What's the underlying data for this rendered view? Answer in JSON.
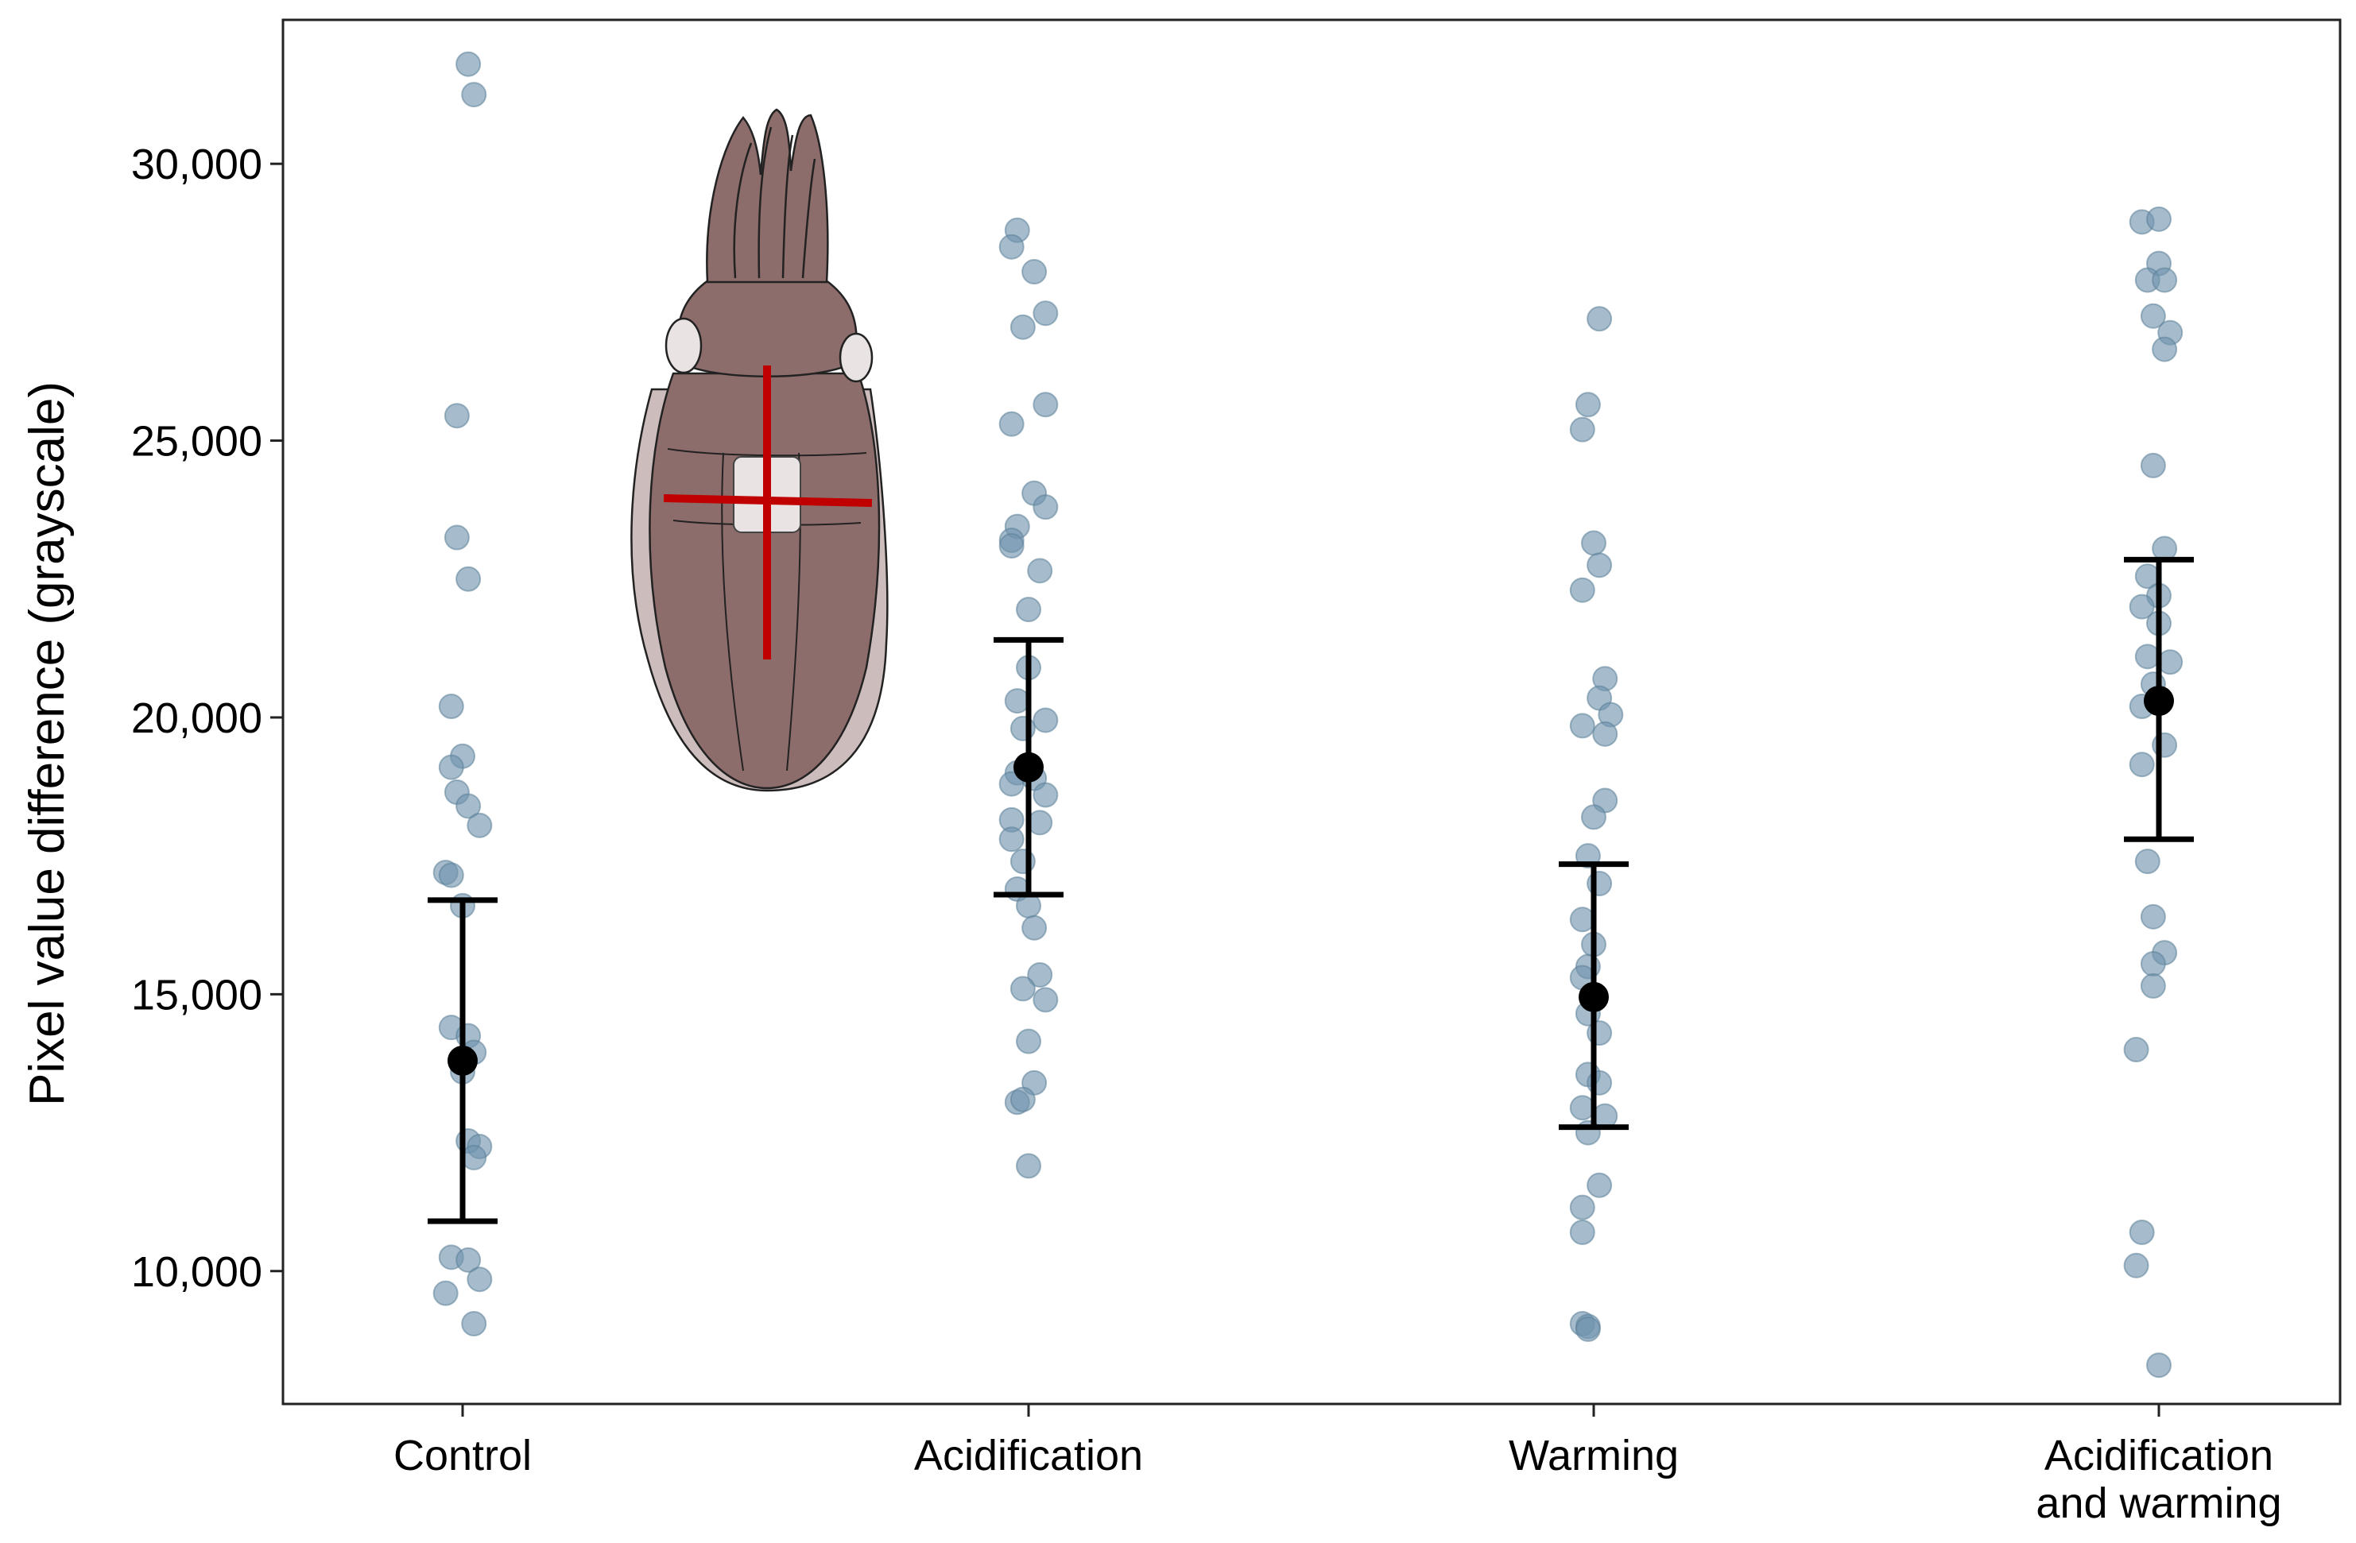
{
  "chart_data": {
    "type": "scatter",
    "subtype": "jittered strip plot with mean ± error bars",
    "title": "",
    "xlabel": "",
    "ylabel": "Pixel value difference (grayscale)",
    "ylim": [
      7600,
      32600
    ],
    "yticks": [
      10000,
      15000,
      20000,
      25000,
      30000
    ],
    "ytick_labels": [
      "10,000",
      "15,000",
      "20,000",
      "25,000",
      "30,000"
    ],
    "categories": [
      {
        "id": "control",
        "lines": [
          "Control"
        ]
      },
      {
        "id": "acidification",
        "lines": [
          "Acidification"
        ]
      },
      {
        "id": "warming",
        "lines": [
          "Warming"
        ]
      },
      {
        "id": "acid-warm",
        "lines": [
          "Acidification",
          "and warming"
        ]
      }
    ],
    "groups": [
      {
        "category": "Control",
        "mean": 13800,
        "lower": 10900,
        "upper": 16700,
        "points": [
          [
            0.01,
            31800
          ],
          [
            0.02,
            31250
          ],
          [
            -0.01,
            25450
          ],
          [
            -0.01,
            23250
          ],
          [
            0.01,
            22500
          ],
          [
            -0.02,
            20200
          ],
          [
            0.0,
            19300
          ],
          [
            -0.02,
            19100
          ],
          [
            -0.01,
            18650
          ],
          [
            0.01,
            18400
          ],
          [
            0.03,
            18050
          ],
          [
            -0.03,
            17200
          ],
          [
            -0.02,
            17150
          ],
          [
            0.0,
            16600
          ],
          [
            -0.02,
            14400
          ],
          [
            0.01,
            14250
          ],
          [
            0.02,
            13950
          ],
          [
            0.0,
            13600
          ],
          [
            0.01,
            12350
          ],
          [
            0.03,
            12250
          ],
          [
            0.02,
            12050
          ],
          [
            -0.02,
            10250
          ],
          [
            0.01,
            10200
          ],
          [
            0.03,
            9850
          ],
          [
            -0.03,
            9600
          ],
          [
            0.02,
            9050
          ]
        ]
      },
      {
        "category": "Acidification",
        "mean": 19100,
        "lower": 16800,
        "upper": 21400,
        "points": [
          [
            -0.02,
            28800
          ],
          [
            -0.03,
            28500
          ],
          [
            0.01,
            28050
          ],
          [
            0.03,
            27300
          ],
          [
            -0.01,
            27050
          ],
          [
            0.03,
            25650
          ],
          [
            -0.03,
            25300
          ],
          [
            0.01,
            24050
          ],
          [
            0.03,
            23800
          ],
          [
            -0.02,
            23450
          ],
          [
            -0.03,
            23200
          ],
          [
            -0.03,
            23100
          ],
          [
            0.02,
            22650
          ],
          [
            0.0,
            21950
          ],
          [
            0.0,
            20900
          ],
          [
            -0.02,
            20300
          ],
          [
            0.03,
            19950
          ],
          [
            -0.01,
            19800
          ],
          [
            -0.02,
            19000
          ],
          [
            -0.03,
            18800
          ],
          [
            0.01,
            18900
          ],
          [
            0.03,
            18600
          ],
          [
            -0.03,
            18150
          ],
          [
            0.02,
            18100
          ],
          [
            -0.03,
            17800
          ],
          [
            -0.01,
            17400
          ],
          [
            -0.02,
            16900
          ],
          [
            0.0,
            16600
          ],
          [
            0.01,
            16200
          ],
          [
            0.02,
            15350
          ],
          [
            -0.01,
            15100
          ],
          [
            0.03,
            14900
          ],
          [
            0.0,
            14150
          ],
          [
            0.01,
            13400
          ],
          [
            -0.02,
            13050
          ],
          [
            -0.01,
            13100
          ],
          [
            0.0,
            11900
          ]
        ]
      },
      {
        "category": "Warming",
        "mean": 14950,
        "lower": 12600,
        "upper": 17350,
        "points": [
          [
            0.01,
            27200
          ],
          [
            -0.01,
            25650
          ],
          [
            -0.02,
            25200
          ],
          [
            0.0,
            23150
          ],
          [
            0.01,
            22750
          ],
          [
            -0.02,
            22300
          ],
          [
            0.02,
            20700
          ],
          [
            0.01,
            20350
          ],
          [
            0.03,
            20050
          ],
          [
            -0.02,
            19850
          ],
          [
            0.02,
            19700
          ],
          [
            0.02,
            18500
          ],
          [
            0.0,
            18200
          ],
          [
            -0.01,
            17500
          ],
          [
            0.01,
            17000
          ],
          [
            -0.02,
            16350
          ],
          [
            0.0,
            15900
          ],
          [
            -0.01,
            15500
          ],
          [
            -0.02,
            15300
          ],
          [
            -0.01,
            14650
          ],
          [
            0.01,
            14300
          ],
          [
            -0.01,
            13550
          ],
          [
            0.01,
            13400
          ],
          [
            -0.02,
            12950
          ],
          [
            0.02,
            12800
          ],
          [
            -0.01,
            12500
          ],
          [
            0.01,
            11550
          ],
          [
            -0.02,
            11150
          ],
          [
            -0.02,
            10700
          ],
          [
            -0.02,
            9050
          ],
          [
            -0.01,
            9000
          ],
          [
            -0.01,
            8950
          ]
        ]
      },
      {
        "category": "Acidification and warming",
        "mean": 20300,
        "lower": 17800,
        "upper": 22850,
        "points": [
          [
            -0.03,
            28950
          ],
          [
            0.0,
            29000
          ],
          [
            0.0,
            28200
          ],
          [
            -0.02,
            27900
          ],
          [
            0.01,
            27900
          ],
          [
            -0.01,
            27250
          ],
          [
            0.02,
            26950
          ],
          [
            0.01,
            26650
          ],
          [
            -0.01,
            24550
          ],
          [
            0.01,
            23050
          ],
          [
            -0.02,
            22550
          ],
          [
            0.0,
            22200
          ],
          [
            -0.03,
            22000
          ],
          [
            0.0,
            21700
          ],
          [
            -0.02,
            21100
          ],
          [
            0.02,
            21000
          ],
          [
            -0.01,
            20600
          ],
          [
            -0.03,
            20200
          ],
          [
            0.01,
            19500
          ],
          [
            -0.03,
            19150
          ],
          [
            -0.02,
            17400
          ],
          [
            -0.01,
            16400
          ],
          [
            0.01,
            15750
          ],
          [
            -0.01,
            15550
          ],
          [
            -0.01,
            15150
          ],
          [
            -0.04,
            14000
          ],
          [
            -0.03,
            10700
          ],
          [
            -0.04,
            10100
          ],
          [
            0.0,
            8300
          ]
        ]
      }
    ],
    "inset_illustration": "cuttlefish dorsal view with white square patch and red cross marks",
    "colors": {
      "points": "#6f93ac",
      "mean": "#000000",
      "cross": "#c00000",
      "body": "#8c6d6b",
      "mantle_fin": "#cdbcbc",
      "patch": "#e9e3e3"
    }
  }
}
